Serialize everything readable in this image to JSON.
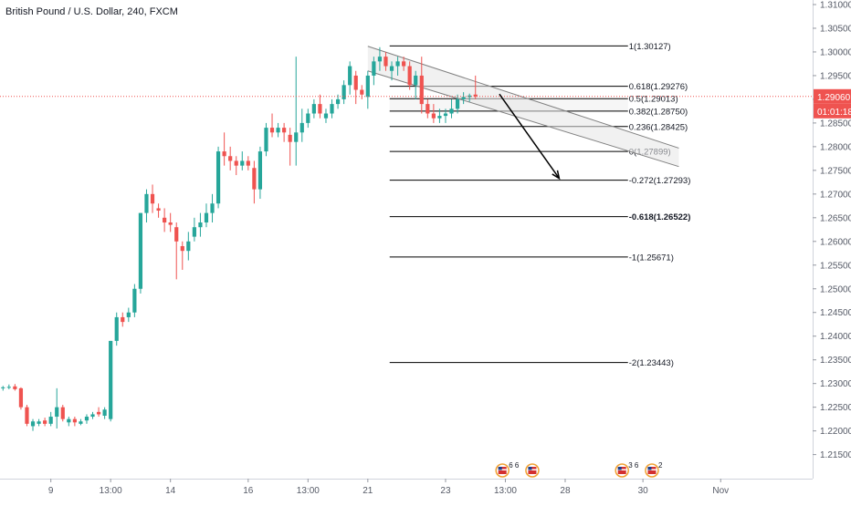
{
  "header": {
    "title": "British Pound / U.S. Dollar, 240, FXCM"
  },
  "price_badge": {
    "price": "1.29060",
    "countdown": "01:01:18"
  },
  "colors": {
    "up": "#26a69a",
    "down": "#ef5350",
    "badge": "#ef5350",
    "text": "#131722",
    "axis_text": "#555a66",
    "line": "#000000",
    "channel": "#808080"
  },
  "chart_data": {
    "type": "candlestick",
    "symbol": "British Pound / U.S. Dollar",
    "interval": "240",
    "source": "FXCM",
    "ylim": [
      1.213,
      1.31
    ],
    "y_ticks": [
      "1.21500",
      "1.22000",
      "1.22500",
      "1.23000",
      "1.23500",
      "1.24000",
      "1.24500",
      "1.25000",
      "1.25500",
      "1.26000",
      "1.26500",
      "1.27000",
      "1.27500",
      "1.28000",
      "1.28500",
      "1.29000",
      "1.29500",
      "1.30000",
      "1.30500",
      "1.31000"
    ],
    "x_ticks": [
      {
        "label": "9",
        "bar": 8
      },
      {
        "label": "13:00",
        "bar": 18
      },
      {
        "label": "14",
        "bar": 28
      },
      {
        "label": "16",
        "bar": 41
      },
      {
        "label": "13:00",
        "bar": 51
      },
      {
        "label": "21",
        "bar": 61
      },
      {
        "label": "23",
        "bar": 74
      },
      {
        "label": "13:00",
        "bar": 84
      },
      {
        "label": "28",
        "bar": 94
      },
      {
        "label": "30",
        "bar": 107
      },
      {
        "label": "Nov",
        "bar": 120
      }
    ],
    "current_price": 1.2906,
    "candles": [
      [
        1.229,
        1.2295,
        1.2285,
        1.2292
      ],
      [
        1.2292,
        1.2298,
        1.2288,
        1.2293
      ],
      [
        1.2294,
        1.2299,
        1.2285,
        1.2288
      ],
      [
        1.229,
        1.2292,
        1.2245,
        1.225
      ],
      [
        1.225,
        1.2255,
        1.221,
        1.2215
      ],
      [
        1.221,
        1.2225,
        1.22,
        1.222
      ],
      [
        1.2215,
        1.2225,
        1.221,
        1.222
      ],
      [
        1.2222,
        1.2228,
        1.221,
        1.2215
      ],
      [
        1.2215,
        1.224,
        1.221,
        1.223
      ],
      [
        1.223,
        1.229,
        1.2205,
        1.225
      ],
      [
        1.225,
        1.2255,
        1.222,
        1.2225
      ],
      [
        1.2218,
        1.223,
        1.221,
        1.2225
      ],
      [
        1.2225,
        1.223,
        1.221,
        1.2218
      ],
      [
        1.2215,
        1.2225,
        1.2212,
        1.222
      ],
      [
        1.2222,
        1.2235,
        1.2215,
        1.223
      ],
      [
        1.223,
        1.224,
        1.2225,
        1.2235
      ],
      [
        1.224,
        1.225,
        1.223,
        1.2235
      ],
      [
        1.2232,
        1.225,
        1.2225,
        1.2245
      ],
      [
        1.2225,
        1.239,
        1.222,
        1.239
      ],
      [
        1.239,
        1.245,
        1.238,
        1.244
      ],
      [
        1.244,
        1.245,
        1.242,
        1.243
      ],
      [
        1.244,
        1.246,
        1.243,
        1.245
      ],
      [
        1.245,
        1.251,
        1.244,
        1.25
      ],
      [
        1.25,
        1.266,
        1.249,
        1.266
      ],
      [
        1.266,
        1.271,
        1.264,
        1.27
      ],
      [
        1.27,
        1.272,
        1.266,
        1.268
      ],
      [
        1.267,
        1.268,
        1.265,
        1.2665
      ],
      [
        1.265,
        1.267,
        1.262,
        1.264
      ],
      [
        1.264,
        1.266,
        1.262,
        1.2635
      ],
      [
        1.263,
        1.264,
        1.252,
        1.26
      ],
      [
        1.259,
        1.26,
        1.254,
        1.258
      ],
      [
        1.258,
        1.262,
        1.256,
        1.26
      ],
      [
        1.261,
        1.265,
        1.26,
        1.263
      ],
      [
        1.263,
        1.266,
        1.261,
        1.264
      ],
      [
        1.264,
        1.268,
        1.263,
        1.266
      ],
      [
        1.266,
        1.27,
        1.264,
        1.268
      ],
      [
        1.268,
        1.28,
        1.267,
        1.279
      ],
      [
        1.279,
        1.283,
        1.276,
        1.278
      ],
      [
        1.278,
        1.28,
        1.275,
        1.277
      ],
      [
        1.277,
        1.278,
        1.274,
        1.276
      ],
      [
        1.276,
        1.279,
        1.275,
        1.277
      ],
      [
        1.277,
        1.278,
        1.275,
        1.276
      ],
      [
        1.2755,
        1.277,
        1.268,
        1.271
      ],
      [
        1.271,
        1.28,
        1.269,
        1.279
      ],
      [
        1.279,
        1.285,
        1.278,
        1.284
      ],
      [
        1.284,
        1.287,
        1.282,
        1.283
      ],
      [
        1.283,
        1.285,
        1.282,
        1.284
      ],
      [
        1.284,
        1.285,
        1.281,
        1.283
      ],
      [
        1.2825,
        1.284,
        1.276,
        1.281
      ],
      [
        1.281,
        1.299,
        1.276,
        1.283
      ],
      [
        1.283,
        1.288,
        1.281,
        1.285
      ],
      [
        1.285,
        1.288,
        1.284,
        1.287
      ],
      [
        1.287,
        1.29,
        1.286,
        1.289
      ],
      [
        1.289,
        1.291,
        1.286,
        1.287
      ],
      [
        1.286,
        1.288,
        1.285,
        1.287
      ],
      [
        1.287,
        1.29,
        1.286,
        1.289
      ],
      [
        1.289,
        1.291,
        1.288,
        1.29
      ],
      [
        1.29,
        1.294,
        1.289,
        1.293
      ],
      [
        1.293,
        1.298,
        1.291,
        1.297
      ],
      [
        1.295,
        1.296,
        1.289,
        1.292
      ],
      [
        1.292,
        1.293,
        1.29,
        1.291
      ],
      [
        1.2905,
        1.296,
        1.288,
        1.295
      ],
      [
        1.295,
        1.299,
        1.293,
        1.298
      ],
      [
        1.298,
        1.301,
        1.296,
        1.299
      ],
      [
        1.299,
        1.3,
        1.296,
        1.297
      ],
      [
        1.296,
        1.298,
        1.294,
        1.297
      ],
      [
        1.297,
        1.299,
        1.295,
        1.298
      ],
      [
        1.298,
        1.299,
        1.296,
        1.297
      ],
      [
        1.297,
        1.298,
        1.292,
        1.293
      ],
      [
        1.293,
        1.296,
        1.29,
        1.295
      ],
      [
        1.295,
        1.299,
        1.287,
        1.289
      ],
      [
        1.289,
        1.29,
        1.286,
        1.287
      ],
      [
        1.287,
        1.289,
        1.285,
        1.286
      ],
      [
        1.286,
        1.288,
        1.285,
        1.2865
      ],
      [
        1.2865,
        1.288,
        1.285,
        1.287
      ],
      [
        1.287,
        1.29,
        1.286,
        1.288
      ],
      [
        1.288,
        1.291,
        1.287,
        1.29
      ],
      [
        1.29,
        1.2915,
        1.289,
        1.2905
      ],
      [
        1.2905,
        1.2912,
        1.2895,
        1.2908
      ],
      [
        1.291,
        1.295,
        1.29,
        1.2906
      ]
    ],
    "fibonacci": [
      {
        "label": "1(1.30127)",
        "level": 1.30127
      },
      {
        "label": "0.618(1.29276)",
        "level": 1.29276
      },
      {
        "label": "0.5(1.29013)",
        "level": 1.29013
      },
      {
        "label": "0.382(1.28750)",
        "level": 1.2875
      },
      {
        "label": "0.236(1.28425)",
        "level": 1.28425
      },
      {
        "label": "0(1.27899)",
        "level": 1.27899
      },
      {
        "label": "-0.272(1.27293)",
        "level": 1.27293
      },
      {
        "label": "-0.618(1.26522)",
        "level": 1.26522,
        "bold": true
      },
      {
        "label": "-1(1.25671)",
        "level": 1.25671
      },
      {
        "label": "-2(1.23443)",
        "level": 1.23443
      }
    ],
    "channel": {
      "upper": [
        [
          61.5,
          1.3012
        ],
        [
          113.5,
          1.2797
        ]
      ],
      "lower": [
        [
          61.5,
          1.296
        ],
        [
          113.5,
          1.2758
        ]
      ]
    },
    "arrow": {
      "from": [
        83.5,
        1.2911
      ],
      "to": [
        93.5,
        1.2733
      ]
    },
    "events": [
      {
        "bar": 84,
        "label": "6 6"
      },
      {
        "bar": 89,
        "label": ""
      },
      {
        "bar": 104,
        "label": "3 6"
      },
      {
        "bar": 109,
        "label": "2"
      }
    ]
  }
}
